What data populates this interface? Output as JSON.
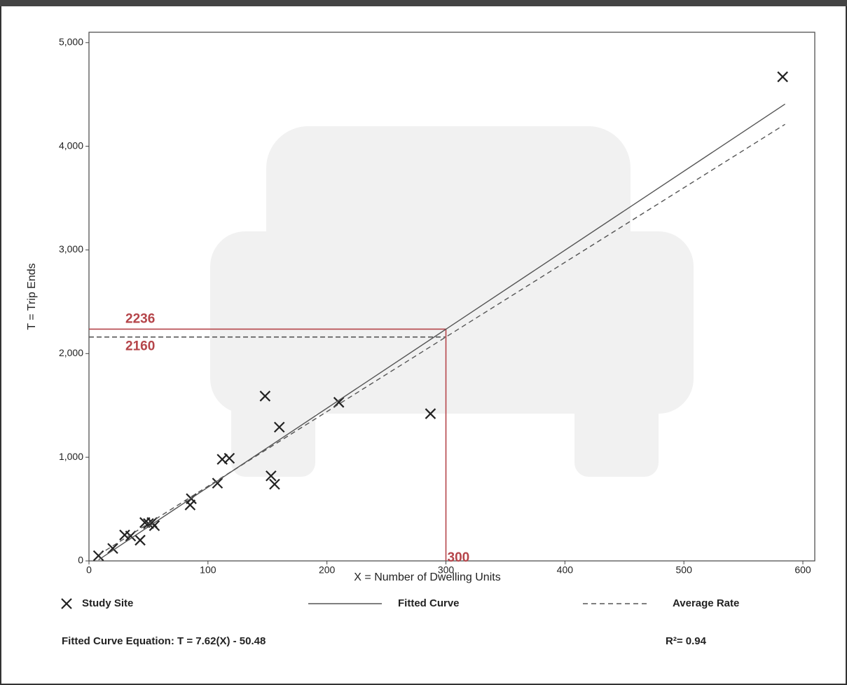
{
  "chart_data": {
    "type": "scatter",
    "xlabel": "X = Number of Dwelling Units",
    "ylabel": "T = Trip Ends",
    "xlim": [
      0,
      610
    ],
    "ylim": [
      0,
      5100
    ],
    "xticks": [
      0,
      100,
      200,
      300,
      400,
      500,
      600
    ],
    "yticks": [
      0,
      {
        "value": 1000,
        "label": "1,000"
      },
      {
        "value": 2000,
        "label": "2,000"
      },
      {
        "value": 3000,
        "label": "3,000"
      },
      {
        "value": 4000,
        "label": "4,000"
      },
      {
        "value": 5000,
        "label": "5,000"
      }
    ],
    "series": [
      {
        "name": "Study Site",
        "color": "#222222",
        "kind": "points",
        "x": [
          8,
          20,
          30,
          35,
          43,
          47,
          50,
          53,
          55,
          85,
          86,
          108,
          112,
          118,
          148,
          153,
          156,
          160,
          210,
          287,
          583
        ],
        "values": [
          50,
          120,
          250,
          240,
          200,
          370,
          360,
          370,
          340,
          540,
          600,
          750,
          980,
          990,
          1590,
          820,
          740,
          1290,
          1530,
          1420,
          4670
        ]
      },
      {
        "name": "Fitted Curve",
        "color": "#555555",
        "kind": "solid",
        "x": [
          8,
          585
        ],
        "values": [
          10,
          4407
        ]
      },
      {
        "name": "Average Rate",
        "color": "#555555",
        "kind": "dashed",
        "x": [
          8,
          585
        ],
        "values": [
          58,
          4212
        ]
      }
    ],
    "guide_x": 300,
    "guides": [
      {
        "y": 2236,
        "dashed": false
      },
      {
        "y": 2160,
        "dashed": true
      }
    ],
    "equation": "Fitted Curve Equation: T = 7.62(X) - 50.48",
    "r_squared": "R²= 0.94"
  }
}
